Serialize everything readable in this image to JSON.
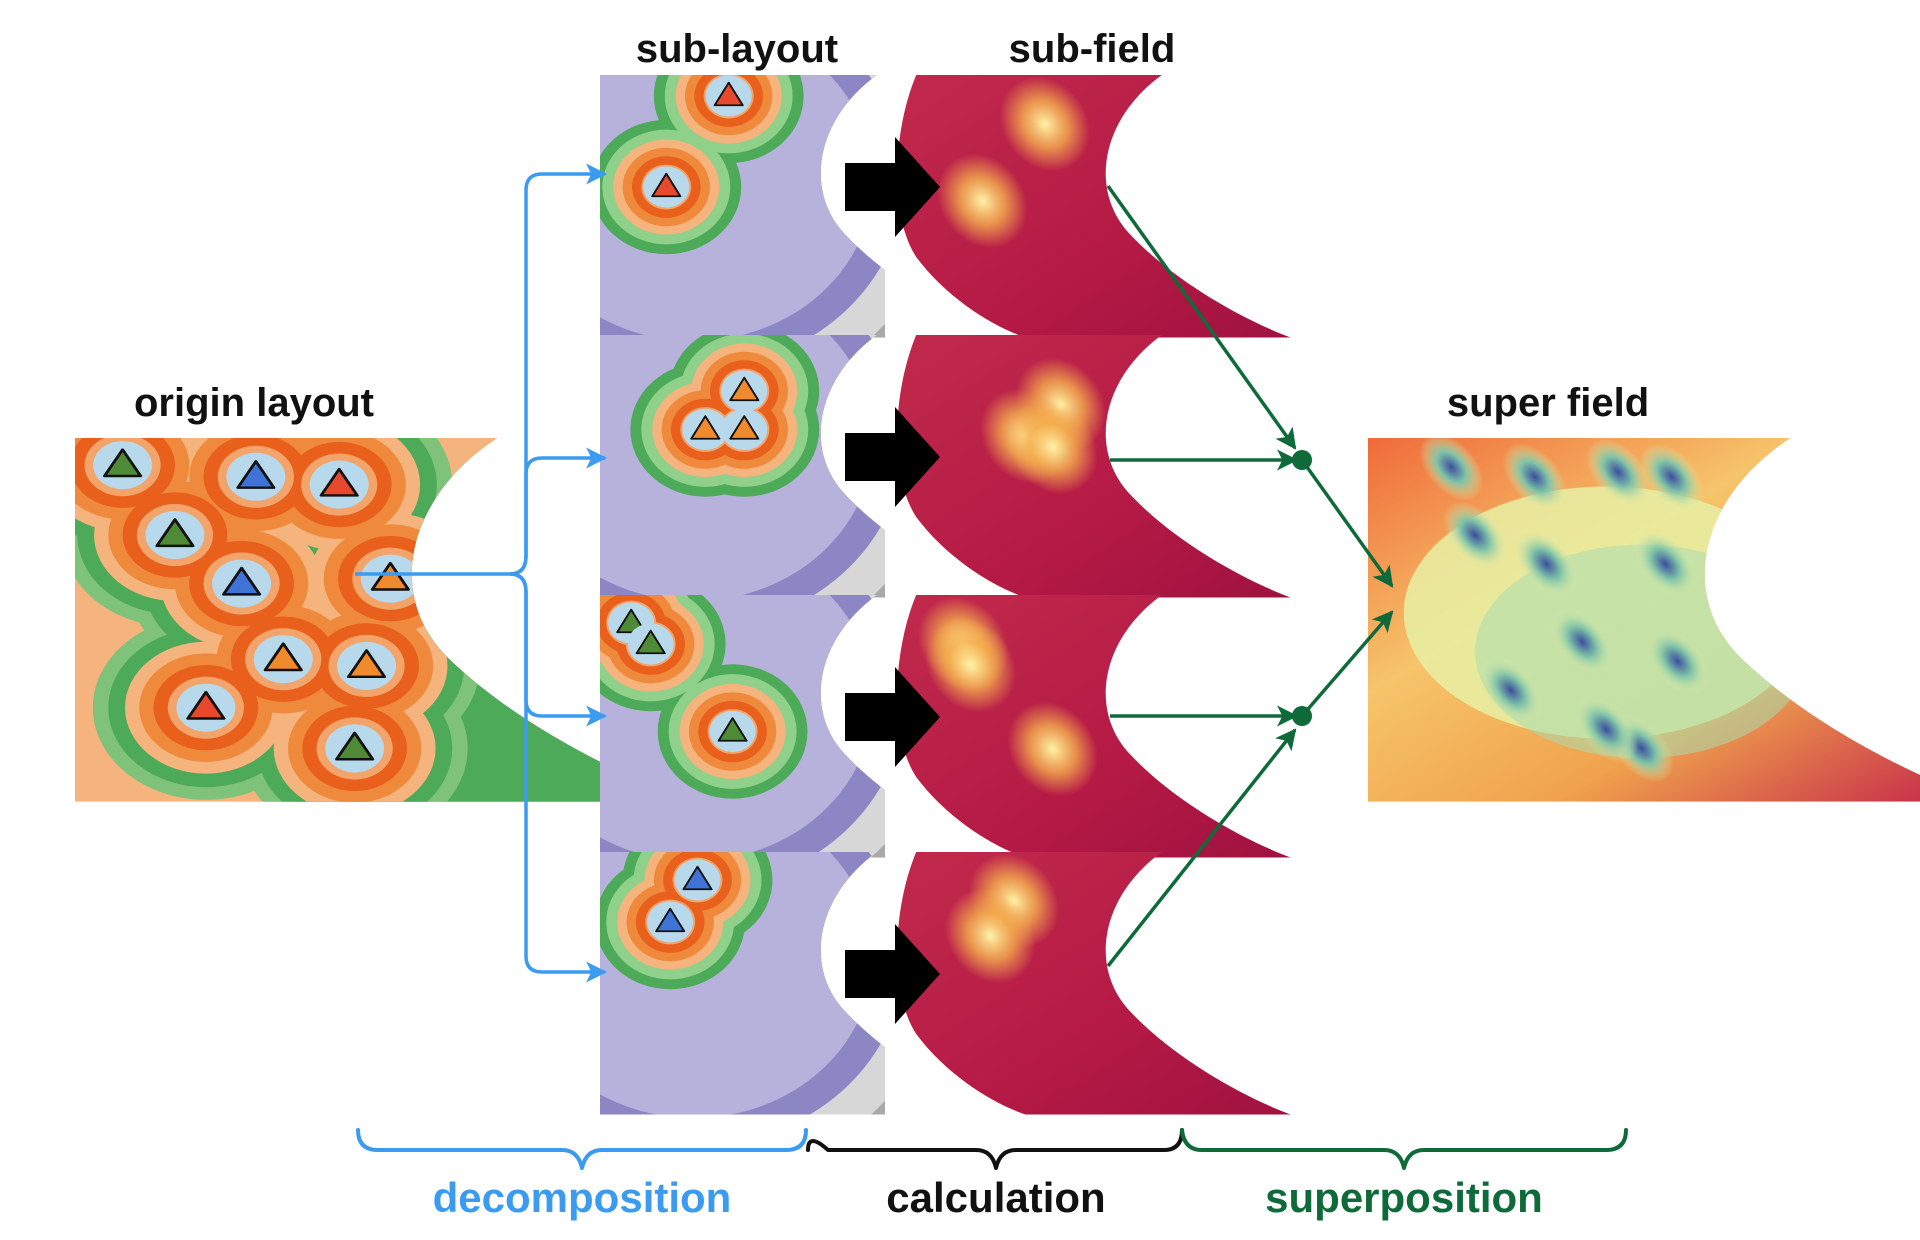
{
  "labels": {
    "origin": "origin layout",
    "sub_layout": "sub-layout",
    "sub_field": "sub-field",
    "super_field": "super field"
  },
  "stages": [
    {
      "key": "decomposition",
      "label": "decomposition",
      "color": "#3a9bf0"
    },
    {
      "key": "calculation",
      "label": "calculation",
      "color": "#111111"
    },
    {
      "key": "superposition",
      "label": "superposition",
      "color": "#0e6b39"
    }
  ],
  "colors": {
    "decomposition_arrow": "#3a9bf0",
    "superposition_arrow": "#0e6b39",
    "calculation_arrow": "#000000",
    "turbine_red": "#e8482c",
    "turbine_blue": "#3f74d6",
    "turbine_orange": "#f08a2c",
    "turbine_green": "#4f8a36",
    "turbine_halo": "#b8d8ec",
    "field_base": "#b51a45"
  },
  "origin_turbines": [
    "green",
    "blue",
    "red",
    "green",
    "blue",
    "orange",
    "orange",
    "orange",
    "red",
    "green"
  ],
  "sub_layouts": [
    {
      "turbines": [
        "red",
        "red"
      ]
    },
    {
      "turbines": [
        "orange",
        "orange",
        "orange"
      ]
    },
    {
      "turbines": [
        "green",
        "green",
        "green"
      ]
    },
    {
      "turbines": [
        "blue",
        "blue"
      ]
    }
  ]
}
